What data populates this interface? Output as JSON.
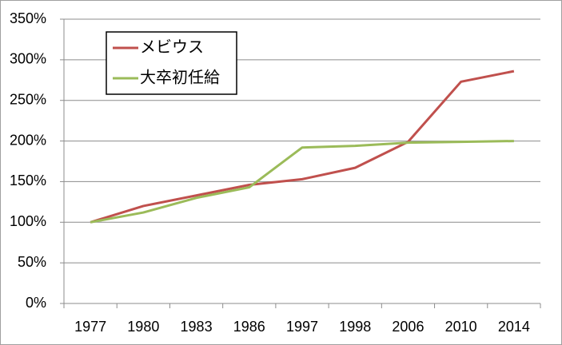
{
  "chart_data": {
    "type": "line",
    "categories": [
      "1977",
      "1980",
      "1983",
      "1986",
      "1997",
      "1998",
      "2006",
      "2010",
      "2014"
    ],
    "series": [
      {
        "name": "メビウス",
        "color": "#c0504d",
        "values": [
          100,
          120,
          133,
          146,
          153,
          167,
          199,
          273,
          286
        ]
      },
      {
        "name": "大卒初任給",
        "color": "#9bbb59",
        "values": [
          100,
          112,
          130,
          143,
          192,
          194,
          198,
          199,
          200
        ]
      }
    ],
    "ylim": [
      0,
      350
    ],
    "yticks": [
      {
        "value": 0,
        "label": "0%"
      },
      {
        "value": 50,
        "label": "50%"
      },
      {
        "value": 100,
        "label": "100%"
      },
      {
        "value": 150,
        "label": "150%"
      },
      {
        "value": 200,
        "label": "200%"
      },
      {
        "value": 250,
        "label": "250%"
      },
      {
        "value": 300,
        "label": "300%"
      },
      {
        "value": 350,
        "label": "350%"
      }
    ],
    "grid": true,
    "legend": "top-left"
  }
}
